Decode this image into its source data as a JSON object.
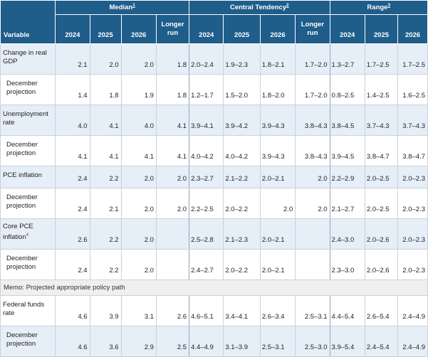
{
  "header": {
    "variable": "Variable",
    "groups": [
      {
        "label": "Median",
        "note": "1"
      },
      {
        "label": "Central Tendency",
        "note": "2"
      },
      {
        "label": "Range",
        "note": "3"
      }
    ],
    "years": [
      "2024",
      "2025",
      "2026"
    ],
    "longer_run": [
      "Longer",
      "run"
    ]
  },
  "rows": [
    {
      "label": "Change in real GDP",
      "note": "",
      "median": [
        "2.1",
        "2.0",
        "2.0",
        "1.8"
      ],
      "ct": [
        "2.0–2.4",
        "1.9–2.3",
        "1.8–2.1",
        "1.7–2.0"
      ],
      "range": [
        "1.3–2.7",
        "1.7–2.5",
        "1.7–2.5"
      ]
    },
    {
      "label": "December projection",
      "note": "",
      "median": [
        "1.4",
        "1.8",
        "1.9",
        "1.8"
      ],
      "ct": [
        "1.2–1.7",
        "1.5–2.0",
        "1.8–2.0",
        "1.7–2.0"
      ],
      "range": [
        "0.8–2.5",
        "1.4–2.5",
        "1.6–2.5"
      ]
    },
    {
      "label": "Unemployment rate",
      "note": "",
      "median": [
        "4.0",
        "4.1",
        "4.0",
        "4.1"
      ],
      "ct": [
        "3.9–4.1",
        "3.9–4.2",
        "3.9–4.3",
        "3.8–4.3"
      ],
      "range": [
        "3.8–4.5",
        "3.7–4.3",
        "3.7–4.3"
      ]
    },
    {
      "label": "December projection",
      "note": "",
      "median": [
        "4.1",
        "4.1",
        "4.1",
        "4.1"
      ],
      "ct": [
        "4.0–4.2",
        "4.0–4.2",
        "3.9–4.3",
        "3.8–4.3"
      ],
      "range": [
        "3.9–4.5",
        "3.8–4.7",
        "3.8–4.7"
      ]
    },
    {
      "label": "PCE inflation",
      "note": "",
      "median": [
        "2.4",
        "2.2",
        "2.0",
        "2.0"
      ],
      "ct": [
        "2.3–2.7",
        "2.1–2.2",
        "2.0–2.1",
        "2.0"
      ],
      "range": [
        "2.2–2.9",
        "2.0–2.5",
        "2.0–2.3"
      ]
    },
    {
      "label": "December projection",
      "note": "",
      "median": [
        "2.4",
        "2.1",
        "2.0",
        "2.0"
      ],
      "ct": [
        "2.2–2.5",
        "2.0–2.2",
        "2.0",
        "2.0"
      ],
      "range": [
        "2.1–2.7",
        "2.0–2.5",
        "2.0–2.3"
      ]
    },
    {
      "label": "Core PCE inflation",
      "note": "4",
      "median": [
        "2.6",
        "2.2",
        "2.0",
        ""
      ],
      "ct": [
        "2.5–2.8",
        "2.1–2.3",
        "2.0–2.1",
        ""
      ],
      "range": [
        "2.4–3.0",
        "2.0–2.6",
        "2.0–2.3"
      ]
    },
    {
      "label": "December projection",
      "note": "",
      "median": [
        "2.4",
        "2.2",
        "2.0",
        ""
      ],
      "ct": [
        "2.4–2.7",
        "2.0–2.2",
        "2.0–2.1",
        ""
      ],
      "range": [
        "2.3–3.0",
        "2.0–2.6",
        "2.0–2.3"
      ]
    },
    {
      "label": "Federal funds rate",
      "note": "",
      "median": [
        "4.6",
        "3.9",
        "3.1",
        "2.6"
      ],
      "ct": [
        "4.6–5.1",
        "3.4–4.1",
        "2.6–3.4",
        "2.5–3.1"
      ],
      "range": [
        "4.4–5.4",
        "2.6–5.4",
        "2.4–4.9"
      ]
    },
    {
      "label": "December projection",
      "note": "",
      "median": [
        "4.6",
        "3.6",
        "2.9",
        "2.5"
      ],
      "ct": [
        "4.4–4.9",
        "3.1–3.9",
        "2.5–3.1",
        "2.5–3.0"
      ],
      "range": [
        "3.9–5.4",
        "2.4–5.4",
        "2.4–4.9"
      ]
    }
  ],
  "memo": "Memo: Projected appropriate policy path"
}
